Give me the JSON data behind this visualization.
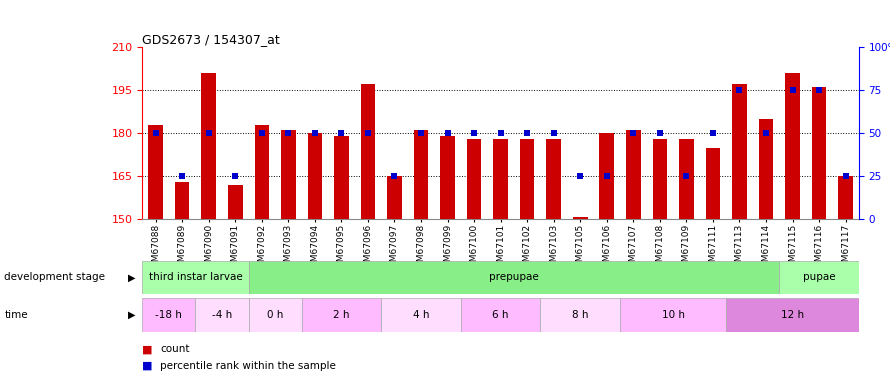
{
  "title": "GDS2673 / 154307_at",
  "samples": [
    "GSM67088",
    "GSM67089",
    "GSM67090",
    "GSM67091",
    "GSM67092",
    "GSM67093",
    "GSM67094",
    "GSM67095",
    "GSM67096",
    "GSM67097",
    "GSM67098",
    "GSM67099",
    "GSM67100",
    "GSM67101",
    "GSM67102",
    "GSM67103",
    "GSM67105",
    "GSM67106",
    "GSM67107",
    "GSM67108",
    "GSM67109",
    "GSM67111",
    "GSM67113",
    "GSM67114",
    "GSM67115",
    "GSM67116",
    "GSM67117"
  ],
  "counts": [
    183,
    163,
    201,
    162,
    183,
    181,
    180,
    179,
    197,
    165,
    181,
    179,
    178,
    178,
    178,
    178,
    151,
    180,
    181,
    178,
    178,
    175,
    197,
    185,
    201,
    196,
    165
  ],
  "percentiles": [
    50,
    25,
    50,
    25,
    50,
    50,
    50,
    50,
    50,
    25,
    50,
    50,
    50,
    50,
    50,
    50,
    25,
    25,
    50,
    50,
    25,
    50,
    75,
    50,
    75,
    75,
    25
  ],
  "ylim_left": [
    150,
    210
  ],
  "yticks_left": [
    150,
    165,
    180,
    195,
    210
  ],
  "ylim_right": [
    0,
    100
  ],
  "yticks_right": [
    0,
    25,
    50,
    75,
    100
  ],
  "bar_color": "#cc0000",
  "pct_color": "#0000cc",
  "bar_bottom": 150,
  "grid_values": [
    165,
    180,
    195
  ],
  "dev_stages": [
    {
      "label": "third instar larvae",
      "start": 0,
      "end": 4,
      "color": "#aaffaa"
    },
    {
      "label": "prepupae",
      "start": 4,
      "end": 24,
      "color": "#88ee88"
    },
    {
      "label": "pupae",
      "start": 24,
      "end": 27,
      "color": "#aaffaa"
    }
  ],
  "time_groups": [
    {
      "label": "-18 h",
      "start": 0,
      "end": 2,
      "color": "#ffbbff"
    },
    {
      "label": "-4 h",
      "start": 2,
      "end": 4,
      "color": "#ffddff"
    },
    {
      "label": "0 h",
      "start": 4,
      "end": 6,
      "color": "#ffddff"
    },
    {
      "label": "2 h",
      "start": 6,
      "end": 9,
      "color": "#ffbbff"
    },
    {
      "label": "4 h",
      "start": 9,
      "end": 12,
      "color": "#ffddff"
    },
    {
      "label": "6 h",
      "start": 12,
      "end": 15,
      "color": "#ffbbff"
    },
    {
      "label": "8 h",
      "start": 15,
      "end": 18,
      "color": "#ffddff"
    },
    {
      "label": "10 h",
      "start": 18,
      "end": 22,
      "color": "#ffbbff"
    },
    {
      "label": "12 h",
      "start": 22,
      "end": 27,
      "color": "#dd88dd"
    }
  ],
  "background_color": "#ffffff"
}
